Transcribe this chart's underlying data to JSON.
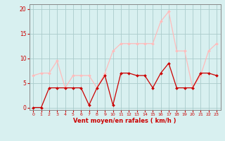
{
  "x": [
    0,
    1,
    2,
    3,
    4,
    5,
    6,
    7,
    8,
    9,
    10,
    11,
    12,
    13,
    14,
    15,
    16,
    17,
    18,
    19,
    20,
    21,
    22,
    23
  ],
  "moyen": [
    0,
    0,
    4,
    4,
    4,
    4,
    4,
    0.5,
    4,
    6.5,
    0.5,
    7,
    7,
    6.5,
    6.5,
    4,
    7,
    9,
    4,
    4,
    4,
    7,
    7,
    6.5
  ],
  "rafales": [
    6.5,
    7,
    7,
    9.5,
    4,
    6.5,
    6.5,
    6.5,
    4,
    7,
    11.5,
    13,
    13,
    13,
    13,
    13,
    17.5,
    19.5,
    11.5,
    11.5,
    4,
    6.5,
    11.5,
    13
  ],
  "moyen_color": "#cc0000",
  "rafales_color": "#ffbbbb",
  "bg_color": "#d8f0f0",
  "grid_color": "#aacccc",
  "xlabel": "Vent moyen/en rafales ( km/h )",
  "xlabel_color": "#cc0000",
  "tick_color": "#cc0000",
  "axis_color": "#888888",
  "ylim": [
    -0.5,
    21
  ],
  "yticks": [
    0,
    5,
    10,
    15,
    20
  ],
  "xlim": [
    -0.5,
    23.5
  ]
}
